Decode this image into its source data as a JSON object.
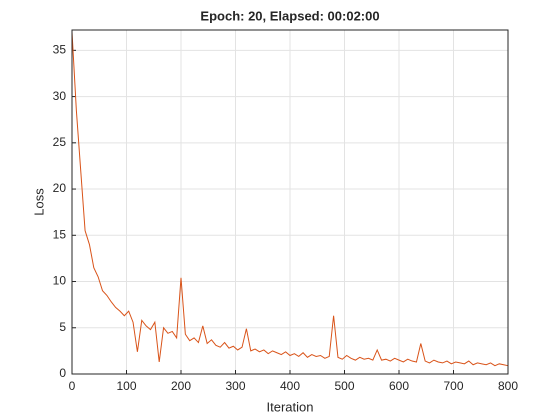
{
  "chart_data": {
    "type": "line",
    "title": "Epoch: 20, Elapsed: 00:02:00",
    "x_label": "Iteration",
    "y_label": "Loss",
    "x": [
      0,
      8,
      16,
      24,
      32,
      40,
      48,
      56,
      64,
      72,
      80,
      88,
      96,
      104,
      112,
      120,
      128,
      136,
      144,
      152,
      160,
      168,
      176,
      184,
      192,
      200,
      208,
      216,
      224,
      232,
      240,
      248,
      256,
      264,
      272,
      280,
      288,
      296,
      304,
      312,
      320,
      328,
      336,
      344,
      352,
      360,
      368,
      376,
      384,
      392,
      400,
      408,
      416,
      424,
      432,
      440,
      448,
      456,
      464,
      472,
      480,
      488,
      496,
      504,
      512,
      520,
      528,
      536,
      544,
      552,
      560,
      568,
      576,
      584,
      592,
      600,
      608,
      616,
      624,
      632,
      640,
      648,
      656,
      664,
      672,
      680,
      688,
      696,
      704,
      712,
      720,
      728,
      736,
      744,
      752,
      760,
      768,
      776,
      784,
      792,
      800
    ],
    "values": [
      37,
      28.5,
      22,
      15.5,
      14,
      11.5,
      10.5,
      9,
      8.5,
      7.8,
      7.2,
      6.8,
      6.3,
      6.8,
      5.6,
      2.4,
      5.8,
      5.2,
      4.8,
      5.6,
      1.3,
      5.0,
      4.4,
      4.6,
      3.9,
      10.4,
      4.3,
      3.6,
      3.9,
      3.4,
      5.2,
      3.3,
      3.7,
      3.1,
      2.9,
      3.4,
      2.8,
      3.0,
      2.6,
      2.9,
      4.9,
      2.5,
      2.7,
      2.4,
      2.6,
      2.2,
      2.5,
      2.3,
      2.1,
      2.4,
      2.0,
      2.2,
      1.9,
      2.3,
      1.8,
      2.1,
      1.9,
      2.0,
      1.7,
      1.9,
      6.3,
      1.8,
      1.6,
      2.0,
      1.7,
      1.5,
      1.8,
      1.6,
      1.7,
      1.5,
      2.6,
      1.5,
      1.6,
      1.4,
      1.7,
      1.5,
      1.3,
      1.6,
      1.4,
      1.3,
      3.3,
      1.4,
      1.2,
      1.5,
      1.3,
      1.2,
      1.4,
      1.1,
      1.3,
      1.2,
      1.1,
      1.4,
      1.0,
      1.2,
      1.1,
      1.0,
      1.2,
      0.9,
      1.1,
      1.0,
      0.9
    ],
    "color": "#d95319",
    "xlim": [
      0,
      800
    ],
    "ylim": [
      0,
      37.2
    ],
    "xticks": [
      0,
      100,
      200,
      300,
      400,
      500,
      600,
      700,
      800
    ],
    "yticks": [
      0,
      5,
      10,
      15,
      20,
      25,
      30,
      35
    ],
    "grid": true
  }
}
